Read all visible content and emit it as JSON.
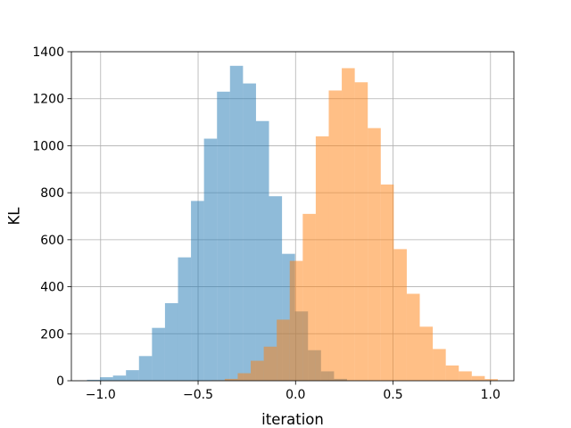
{
  "chart_data": {
    "type": "bar",
    "title": "",
    "xlabel": "iteration",
    "ylabel": "KL",
    "xlim": [
      -1.15,
      1.12
    ],
    "ylim": [
      0,
      1400
    ],
    "xticks": [
      -1.0,
      -0.5,
      0.0,
      0.5,
      1.0
    ],
    "xtick_labels": [
      "−1.0",
      "−0.5",
      "0.0",
      "0.5",
      "1.0"
    ],
    "yticks": [
      0,
      200,
      400,
      600,
      800,
      1000,
      1200,
      1400
    ],
    "ytick_labels": [
      "0",
      "200",
      "400",
      "600",
      "800",
      "1000",
      "1200",
      "1400"
    ],
    "grid": true,
    "legend": "none",
    "overlap_note": "",
    "series": [
      {
        "color": "#1f77b4",
        "alpha": 0.5,
        "bin_start": -1.07,
        "bin_width": 0.0667,
        "counts": [
          4,
          15,
          22,
          45,
          105,
          225,
          330,
          525,
          765,
          1030,
          1230,
          1340,
          1265,
          1105,
          785,
          540,
          295,
          130,
          40,
          8,
          1,
          1
        ]
      },
      {
        "color": "#ff7f0e",
        "alpha": 0.5,
        "bin_start": -0.43,
        "bin_width": 0.0667,
        "counts": [
          2,
          8,
          32,
          85,
          145,
          260,
          510,
          710,
          1040,
          1235,
          1330,
          1270,
          1075,
          835,
          560,
          370,
          230,
          135,
          65,
          40,
          20,
          7,
          1
        ]
      }
    ]
  }
}
